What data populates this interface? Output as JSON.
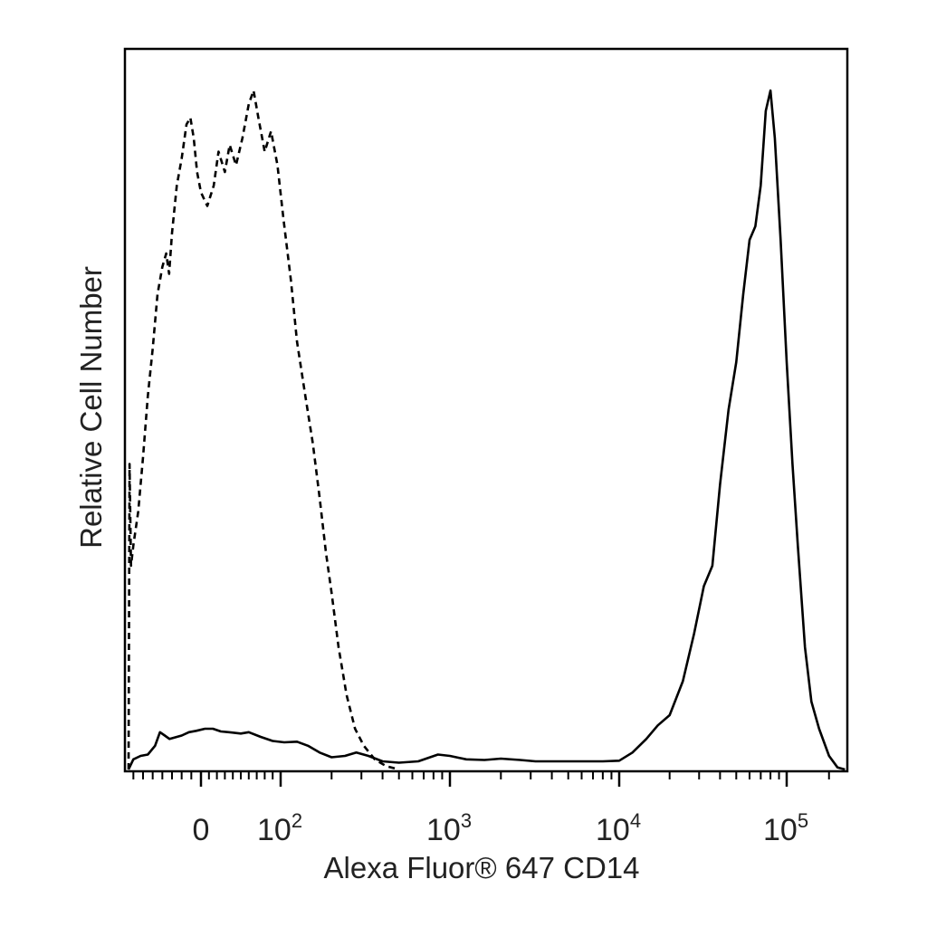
{
  "chart_data": {
    "type": "line",
    "title": "",
    "xlabel": "Alexa Fluor® 647 CD14",
    "ylabel": "Relative Cell Number",
    "x_scale": "biexponential",
    "x_ticks": [
      {
        "value": 0,
        "base": "0",
        "exp": ""
      },
      {
        "value": 100,
        "base": "10",
        "exp": "2"
      },
      {
        "value": 1000,
        "base": "10",
        "exp": "3"
      },
      {
        "value": 10000,
        "base": "10",
        "exp": "4"
      },
      {
        "value": 100000,
        "base": "10",
        "exp": "5"
      }
    ],
    "grid": false,
    "legend": "none",
    "series": [
      {
        "style": "dashed",
        "color": "#000000",
        "points": [
          [
            -150,
            0
          ],
          [
            -148,
            0.45
          ],
          [
            -145,
            0.3
          ],
          [
            -140,
            0.33
          ],
          [
            -130,
            0.38
          ],
          [
            -120,
            0.46
          ],
          [
            -110,
            0.55
          ],
          [
            -100,
            0.62
          ],
          [
            -90,
            0.7
          ],
          [
            -80,
            0.74
          ],
          [
            -72,
            0.76
          ],
          [
            -66,
            0.73
          ],
          [
            -60,
            0.79
          ],
          [
            -50,
            0.86
          ],
          [
            -40,
            0.9
          ],
          [
            -30,
            0.95
          ],
          [
            -22,
            0.96
          ],
          [
            -15,
            0.93
          ],
          [
            -8,
            0.88
          ],
          [
            0,
            0.85
          ],
          [
            8,
            0.83
          ],
          [
            16,
            0.86
          ],
          [
            22,
            0.91
          ],
          [
            30,
            0.88
          ],
          [
            36,
            0.92
          ],
          [
            44,
            0.89
          ],
          [
            52,
            0.93
          ],
          [
            60,
            0.98
          ],
          [
            66,
            1.0
          ],
          [
            72,
            0.96
          ],
          [
            80,
            0.91
          ],
          [
            88,
            0.94
          ],
          [
            96,
            0.89
          ],
          [
            104,
            0.81
          ],
          [
            115,
            0.72
          ],
          [
            125,
            0.63
          ],
          [
            140,
            0.55
          ],
          [
            155,
            0.48
          ],
          [
            170,
            0.4
          ],
          [
            185,
            0.32
          ],
          [
            200,
            0.26
          ],
          [
            220,
            0.18
          ],
          [
            245,
            0.11
          ],
          [
            275,
            0.06
          ],
          [
            310,
            0.035
          ],
          [
            360,
            0.015
          ],
          [
            420,
            0.005
          ],
          [
            500,
            0.0
          ]
        ]
      },
      {
        "style": "solid",
        "color": "#000000",
        "points": [
          [
            -150,
            0.0
          ],
          [
            -140,
            0.015
          ],
          [
            -125,
            0.02
          ],
          [
            -110,
            0.022
          ],
          [
            -95,
            0.035
          ],
          [
            -85,
            0.055
          ],
          [
            -75,
            0.05
          ],
          [
            -65,
            0.045
          ],
          [
            -55,
            0.047
          ],
          [
            -40,
            0.05
          ],
          [
            -25,
            0.055
          ],
          [
            -10,
            0.057
          ],
          [
            5,
            0.06
          ],
          [
            15,
            0.06
          ],
          [
            25,
            0.056
          ],
          [
            35,
            0.055
          ],
          [
            50,
            0.053
          ],
          [
            60,
            0.055
          ],
          [
            75,
            0.048
          ],
          [
            90,
            0.042
          ],
          [
            105,
            0.04
          ],
          [
            125,
            0.041
          ],
          [
            145,
            0.035
          ],
          [
            170,
            0.025
          ],
          [
            200,
            0.018
          ],
          [
            240,
            0.02
          ],
          [
            280,
            0.025
          ],
          [
            330,
            0.02
          ],
          [
            400,
            0.012
          ],
          [
            500,
            0.01
          ],
          [
            650,
            0.012
          ],
          [
            850,
            0.022
          ],
          [
            1000,
            0.02
          ],
          [
            1250,
            0.015
          ],
          [
            1600,
            0.014
          ],
          [
            2000,
            0.016
          ],
          [
            2600,
            0.014
          ],
          [
            3200,
            0.012
          ],
          [
            4500,
            0.012
          ],
          [
            6000,
            0.012
          ],
          [
            8000,
            0.012
          ],
          [
            10000,
            0.013
          ],
          [
            12000,
            0.025
          ],
          [
            14500,
            0.045
          ],
          [
            17000,
            0.065
          ],
          [
            20000,
            0.08
          ],
          [
            24000,
            0.13
          ],
          [
            28000,
            0.2
          ],
          [
            32000,
            0.27
          ],
          [
            36000,
            0.3
          ],
          [
            40000,
            0.42
          ],
          [
            45000,
            0.53
          ],
          [
            50000,
            0.6
          ],
          [
            55000,
            0.7
          ],
          [
            60000,
            0.78
          ],
          [
            65000,
            0.8
          ],
          [
            70000,
            0.86
          ],
          [
            75000,
            0.97
          ],
          [
            80000,
            1.0
          ],
          [
            85000,
            0.93
          ],
          [
            92000,
            0.78
          ],
          [
            100000,
            0.6
          ],
          [
            110000,
            0.45
          ],
          [
            120000,
            0.33
          ],
          [
            135000,
            0.18
          ],
          [
            150000,
            0.1
          ],
          [
            170000,
            0.06
          ],
          [
            200000,
            0.02
          ],
          [
            230000,
            0.003
          ],
          [
            260000,
            0.0
          ]
        ]
      }
    ]
  }
}
